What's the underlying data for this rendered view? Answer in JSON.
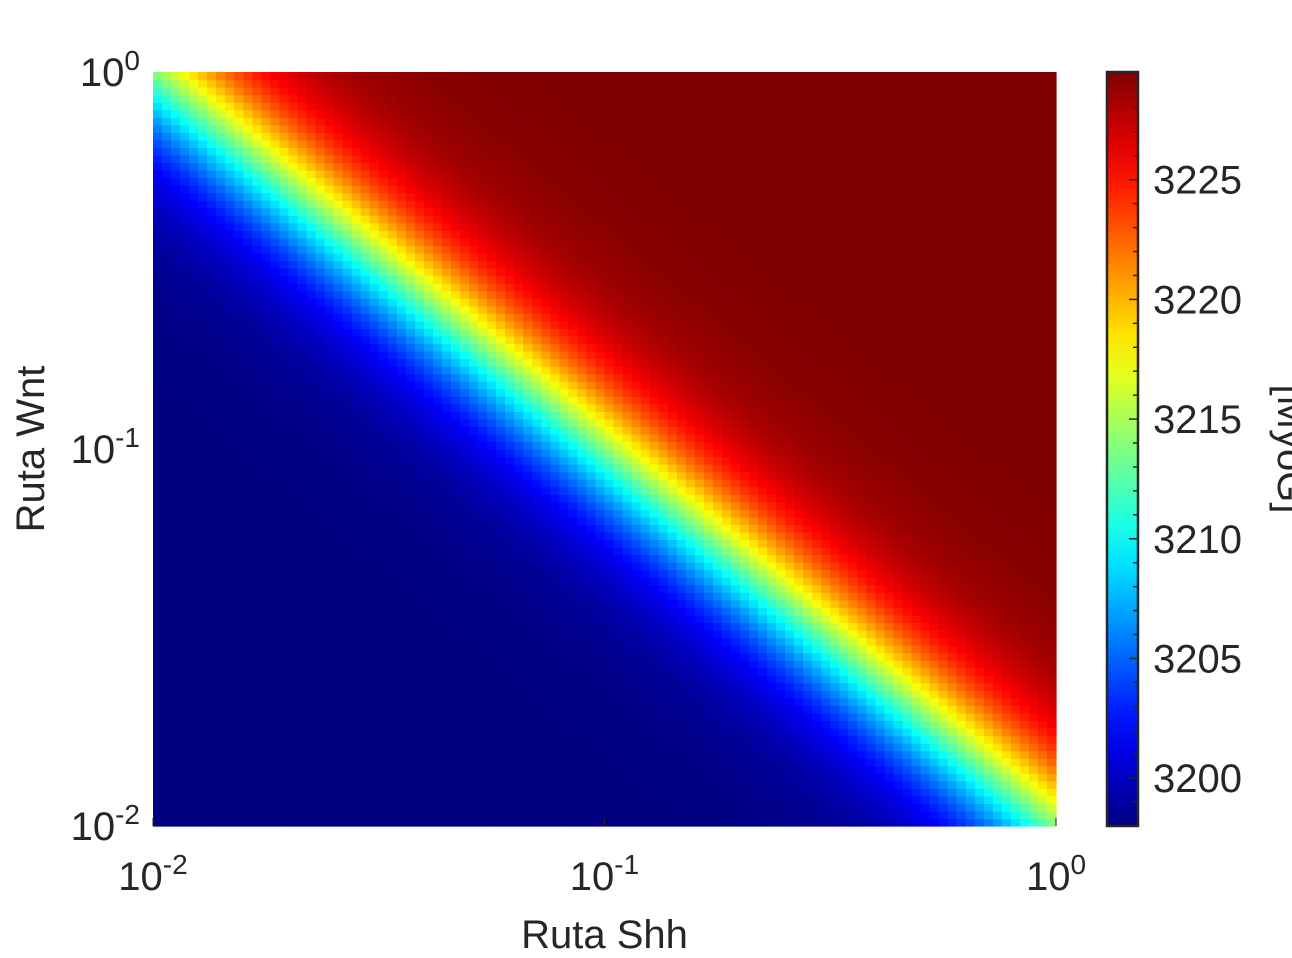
{
  "chart_data": {
    "type": "heatmap",
    "title": "",
    "xlabel": "Ruta Shh",
    "ylabel": "Ruta Wnt",
    "x_scale": "log",
    "y_scale": "log",
    "xlim": [
      0.01,
      1
    ],
    "ylim": [
      0.01,
      1
    ],
    "x_ticks": [
      {
        "value": 0.01,
        "base": "10",
        "exp": "-2"
      },
      {
        "value": 0.1,
        "base": "10",
        "exp": "-1"
      },
      {
        "value": 1,
        "base": "10",
        "exp": "0"
      }
    ],
    "y_ticks": [
      {
        "value": 0.01,
        "base": "10",
        "exp": "-2"
      },
      {
        "value": 0.1,
        "base": "10",
        "exp": "-1"
      },
      {
        "value": 1,
        "base": "10",
        "exp": "0"
      }
    ],
    "grid_points_per_axis": 100,
    "colormap": "jet",
    "colorbar": {
      "label": "[MyoG]",
      "range": [
        3198,
        3229.5
      ],
      "ticks": [
        "3200",
        "3205",
        "3210",
        "3215",
        "3220",
        "3225"
      ],
      "tick_values": [
        3200,
        3205,
        3210,
        3215,
        3220,
        3225
      ]
    },
    "surface": {
      "description_low_region": "value ≈ 3198 where Shh·Wnt is small (lower-left)",
      "low_value": 3198,
      "high_value": 3229.5,
      "transition_center_log10_product": -2.0,
      "transition_width_log10": 0.13
    },
    "grid": false
  }
}
